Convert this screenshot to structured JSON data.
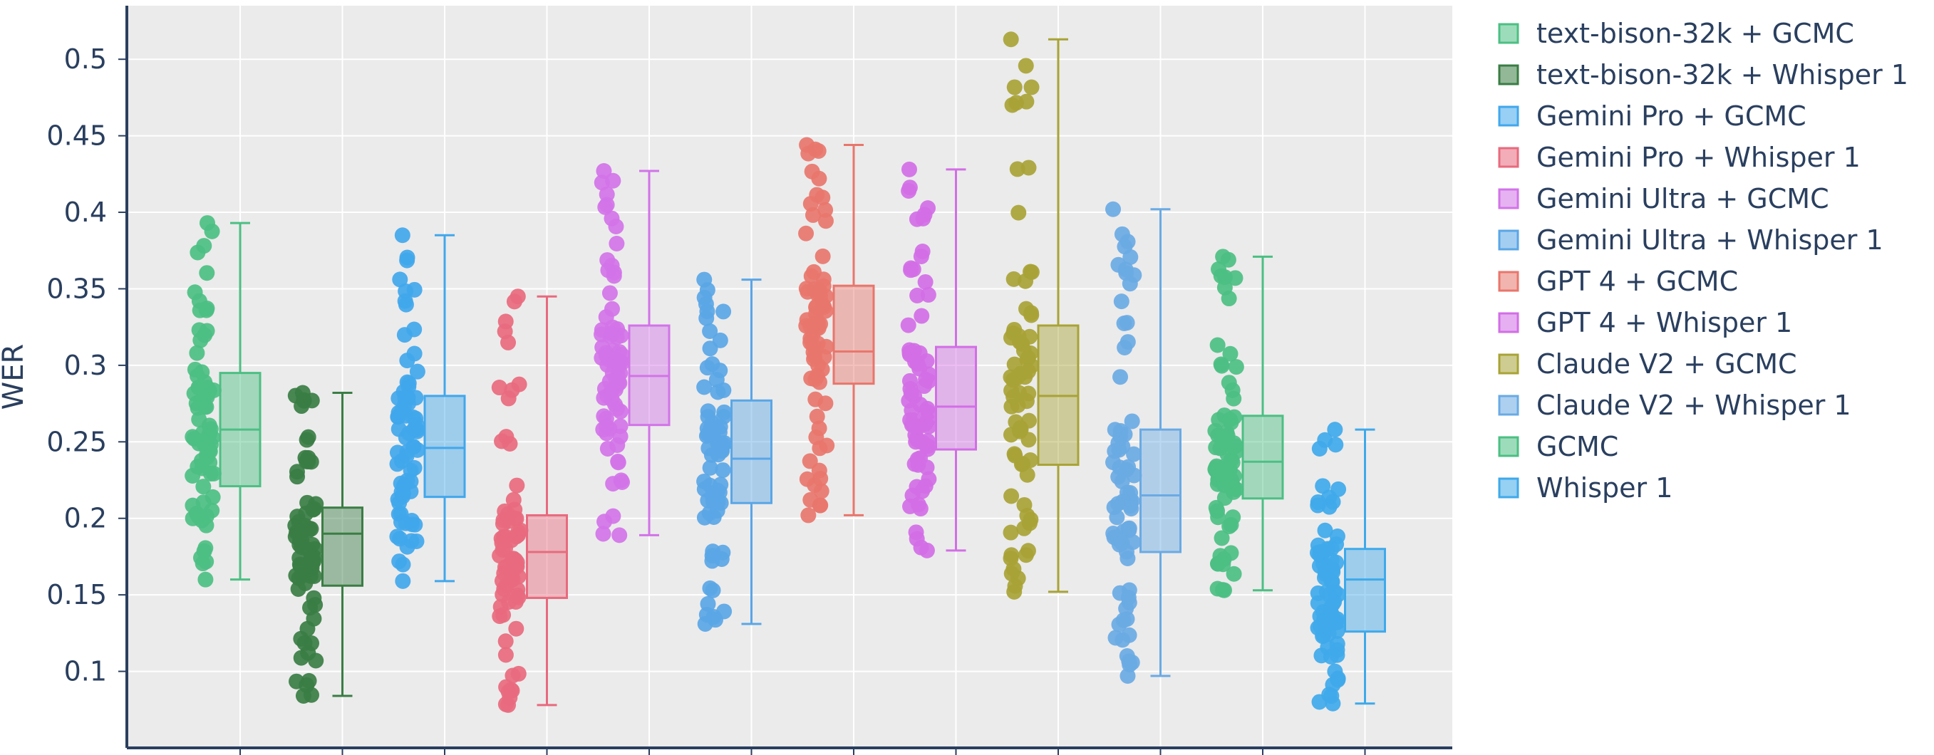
{
  "chart_data": {
    "type": "box",
    "ylabel": "WER",
    "xlabel": "",
    "ylim": [
      0.05,
      0.535
    ],
    "yticks": [
      "0.1",
      "0.15",
      "0.2",
      "0.25",
      "0.3",
      "0.35",
      "0.4",
      "0.45",
      "0.5"
    ],
    "grid": true,
    "legend_position": "right",
    "plot_background": "#ebebeb",
    "series": [
      {
        "name": "text-bison-32k + GCMC",
        "color": "#4cbf83",
        "min": 0.16,
        "q1": 0.221,
        "median": 0.258,
        "q3": 0.295,
        "max": 0.393
      },
      {
        "name": "text-bison-32k + Whisper 1",
        "color": "#3a7d44",
        "min": 0.084,
        "q1": 0.156,
        "median": 0.19,
        "q3": 0.207,
        "max": 0.282
      },
      {
        "name": "Gemini Pro + GCMC",
        "color": "#41a7ec",
        "min": 0.159,
        "q1": 0.214,
        "median": 0.246,
        "q3": 0.28,
        "max": 0.385
      },
      {
        "name": "Gemini Pro + Whisper 1",
        "color": "#e86a7e",
        "min": 0.078,
        "q1": 0.148,
        "median": 0.178,
        "q3": 0.202,
        "max": 0.345
      },
      {
        "name": "Gemini Ultra + GCMC",
        "color": "#d273e8",
        "min": 0.189,
        "q1": 0.261,
        "median": 0.293,
        "q3": 0.326,
        "max": 0.427
      },
      {
        "name": "Gemini Ultra + Whisper 1",
        "color": "#5aa6e6",
        "min": 0.131,
        "q1": 0.21,
        "median": 0.239,
        "q3": 0.277,
        "max": 0.356
      },
      {
        "name": "GPT 4 + GCMC",
        "color": "#e8766c",
        "min": 0.202,
        "q1": 0.288,
        "median": 0.309,
        "q3": 0.352,
        "max": 0.444
      },
      {
        "name": "GPT 4 + Whisper 1",
        "color": "#d26ee6",
        "min": 0.179,
        "q1": 0.245,
        "median": 0.273,
        "q3": 0.312,
        "max": 0.428
      },
      {
        "name": "Claude V2 + GCMC",
        "color": "#a8a336",
        "min": 0.152,
        "q1": 0.235,
        "median": 0.28,
        "q3": 0.326,
        "max": 0.513
      },
      {
        "name": "Claude V2 + Whisper 1",
        "color": "#6aaae4",
        "min": 0.097,
        "q1": 0.178,
        "median": 0.215,
        "q3": 0.258,
        "max": 0.402
      },
      {
        "name": "GCMC",
        "color": "#4cbf83",
        "min": 0.153,
        "q1": 0.213,
        "median": 0.237,
        "q3": 0.267,
        "max": 0.371
      },
      {
        "name": "Whisper 1",
        "color": "#3fa9ea",
        "min": 0.079,
        "q1": 0.126,
        "median": 0.16,
        "q3": 0.18,
        "max": 0.258
      }
    ]
  }
}
